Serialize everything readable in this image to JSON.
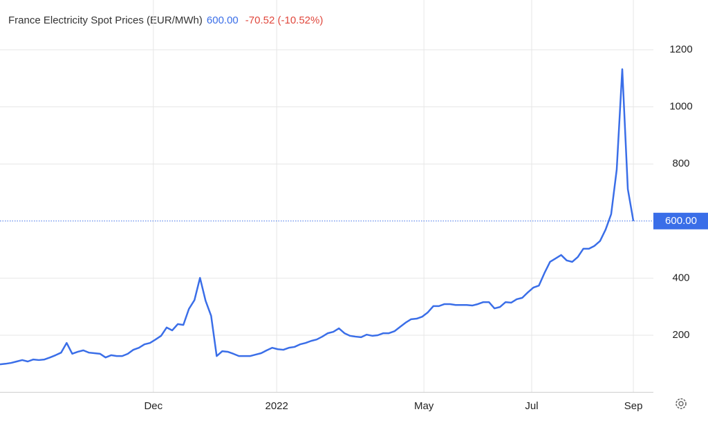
{
  "chart_data": {
    "type": "line",
    "title": "France Electricity Spot Prices (EUR/MWh)",
    "last_value": "600.00",
    "change": "-70.52 (-10.52%)",
    "color": "#3a6ee8",
    "values": [
      98,
      100,
      103,
      108,
      113,
      108,
      115,
      113,
      115,
      122,
      130,
      139,
      173,
      135,
      142,
      147,
      139,
      137,
      135,
      122,
      130,
      127,
      127,
      135,
      149,
      156,
      168,
      173,
      185,
      198,
      227,
      217,
      239,
      236,
      292,
      323,
      401,
      321,
      268,
      127,
      144,
      142,
      135,
      127,
      127,
      127,
      132,
      137,
      147,
      156,
      151,
      149,
      156,
      159,
      168,
      173,
      180,
      185,
      195,
      207,
      212,
      224,
      207,
      198,
      195,
      193,
      202,
      198,
      200,
      207,
      207,
      214,
      229,
      244,
      256,
      258,
      265,
      280,
      302,
      302,
      309,
      309,
      306,
      306,
      306,
      304,
      309,
      316,
      316,
      294,
      299,
      316,
      314,
      326,
      331,
      350,
      367,
      374,
      418,
      457,
      469,
      481,
      462,
      457,
      474,
      503,
      503,
      513,
      530,
      570,
      624,
      780,
      1132,
      712,
      600
    ],
    "xlim": [
      0,
      117.6
    ],
    "xticks": [
      {
        "value": 27.6,
        "label": "Dec"
      },
      {
        "value": 49.8,
        "label": "2022"
      },
      {
        "value": 76.3,
        "label": "May"
      },
      {
        "value": 95.7,
        "label": "Jul"
      },
      {
        "value": 114,
        "label": "Sep"
      }
    ],
    "ylim": [
      0,
      1300
    ],
    "yticks": [
      200,
      400,
      800,
      1000,
      1200
    ],
    "grid": true
  }
}
